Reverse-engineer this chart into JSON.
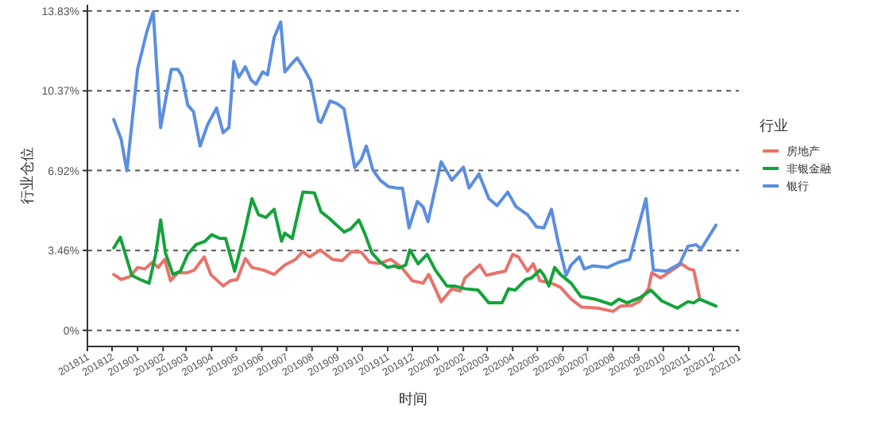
{
  "chart_data": {
    "type": "line",
    "xlabel": "时间",
    "ylabel": "行业仓位",
    "legend_title": "行业",
    "legend": "right",
    "grid": "y",
    "line_style": "solid",
    "xlim": [
      "2018-11-01",
      "2021-01-01"
    ],
    "xticks": [
      {
        "value": "2018-11-01",
        "label": "201811"
      },
      {
        "value": "2018-12-01",
        "label": "201812"
      },
      {
        "value": "2019-01-01",
        "label": "201901"
      },
      {
        "value": "2019-02-01",
        "label": "201902"
      },
      {
        "value": "2019-03-01",
        "label": "201903"
      },
      {
        "value": "2019-04-01",
        "label": "201904"
      },
      {
        "value": "2019-05-01",
        "label": "201905"
      },
      {
        "value": "2019-06-01",
        "label": "201906"
      },
      {
        "value": "2019-07-01",
        "label": "201907"
      },
      {
        "value": "2019-08-01",
        "label": "201908"
      },
      {
        "value": "2019-09-01",
        "label": "201909"
      },
      {
        "value": "2019-10-01",
        "label": "201910"
      },
      {
        "value": "2019-11-01",
        "label": "201911"
      },
      {
        "value": "2019-12-01",
        "label": "201912"
      },
      {
        "value": "2020-01-01",
        "label": "202001"
      },
      {
        "value": "2020-02-01",
        "label": "202002"
      },
      {
        "value": "2020-03-01",
        "label": "202003"
      },
      {
        "value": "2020-04-01",
        "label": "202004"
      },
      {
        "value": "2020-05-01",
        "label": "202005"
      },
      {
        "value": "2020-06-01",
        "label": "202006"
      },
      {
        "value": "2020-07-01",
        "label": "202007"
      },
      {
        "value": "2020-08-01",
        "label": "202008"
      },
      {
        "value": "2020-09-01",
        "label": "202009"
      },
      {
        "value": "2020-10-01",
        "label": "202010"
      },
      {
        "value": "2020-11-01",
        "label": "202011"
      },
      {
        "value": "2020-12-01",
        "label": "202012"
      },
      {
        "value": "2021-01-01",
        "label": "202101"
      }
    ],
    "ylim": [
      -0.7,
      14.1
    ],
    "yticks": [
      {
        "value": 0,
        "label": "0%"
      },
      {
        "value": 3.46,
        "label": "3.46%"
      },
      {
        "value": 6.92,
        "label": "6.92%"
      },
      {
        "value": 10.37,
        "label": "10.37%"
      },
      {
        "value": 13.83,
        "label": "13.83%"
      }
    ],
    "series": [
      {
        "name": "房地产",
        "color": "#e8736b",
        "x": [
          "2018-12-03",
          "2018-12-12",
          "2018-12-23",
          "2019-01-01",
          "2019-01-10",
          "2019-01-19",
          "2019-01-26",
          "2019-02-03",
          "2019-02-10",
          "2019-02-19",
          "2019-03-02",
          "2019-03-11",
          "2019-03-23",
          "2019-03-31",
          "2019-04-15",
          "2019-04-24",
          "2019-05-02",
          "2019-05-12",
          "2019-05-20",
          "2019-06-03",
          "2019-06-16",
          "2019-06-29",
          "2019-07-12",
          "2019-07-21",
          "2019-07-29",
          "2019-08-11",
          "2019-08-26",
          "2019-09-07",
          "2019-09-18",
          "2019-09-30",
          "2019-10-10",
          "2019-10-22",
          "2019-11-05",
          "2019-11-18",
          "2019-12-01",
          "2019-12-14",
          "2019-12-21",
          "2020-01-05",
          "2020-01-18",
          "2020-01-28",
          "2020-02-03",
          "2020-02-21",
          "2020-02-29",
          "2020-03-13",
          "2020-03-23",
          "2020-04-01",
          "2020-04-08",
          "2020-04-19",
          "2020-04-26",
          "2020-05-04",
          "2020-05-18",
          "2020-05-29",
          "2020-06-11",
          "2020-06-24",
          "2020-07-14",
          "2020-08-01",
          "2020-08-10",
          "2020-08-24",
          "2020-09-03",
          "2020-09-13",
          "2020-09-17",
          "2020-09-28",
          "2020-10-12",
          "2020-10-23",
          "2020-11-01",
          "2020-11-07",
          "2020-11-14"
        ],
        "values": [
          2.42,
          2.2,
          2.33,
          2.72,
          2.66,
          2.95,
          2.72,
          3.07,
          2.15,
          2.49,
          2.49,
          2.61,
          3.18,
          2.42,
          1.92,
          2.15,
          2.2,
          3.11,
          2.72,
          2.61,
          2.42,
          2.83,
          3.07,
          3.41,
          3.18,
          3.48,
          3.07,
          3.02,
          3.41,
          3.38,
          2.95,
          2.9,
          3.07,
          2.72,
          2.15,
          2.04,
          2.42,
          1.24,
          1.8,
          1.7,
          2.27,
          2.83,
          2.38,
          2.49,
          2.56,
          3.29,
          3.18,
          2.56,
          2.88,
          2.15,
          2.04,
          1.87,
          1.35,
          1.0,
          0.96,
          0.82,
          1.05,
          1.08,
          1.28,
          1.8,
          2.49,
          2.27,
          2.61,
          2.88,
          2.66,
          2.61,
          1.45
        ]
      },
      {
        "name": "非银金融",
        "color": "#14a33a",
        "x": [
          "2018-12-03",
          "2018-12-11",
          "2018-12-25",
          "2019-01-04",
          "2019-01-15",
          "2019-01-23",
          "2019-01-29",
          "2019-02-04",
          "2019-02-13",
          "2019-02-22",
          "2019-03-03",
          "2019-03-13",
          "2019-03-24",
          "2019-04-01",
          "2019-04-11",
          "2019-04-18",
          "2019-04-29",
          "2019-05-10",
          "2019-05-20",
          "2019-05-28",
          "2019-06-06",
          "2019-06-16",
          "2019-06-25",
          "2019-06-29",
          "2019-07-08",
          "2019-07-21",
          "2019-08-04",
          "2019-08-12",
          "2019-08-22",
          "2019-09-09",
          "2019-09-17",
          "2019-09-27",
          "2019-10-04",
          "2019-10-13",
          "2019-10-23",
          "2019-11-01",
          "2019-11-09",
          "2019-11-15",
          "2019-11-23",
          "2019-11-28",
          "2019-12-08",
          "2019-12-19",
          "2019-12-29",
          "2020-01-12",
          "2020-01-21",
          "2020-02-03",
          "2020-02-19",
          "2020-03-03",
          "2020-03-19",
          "2020-03-27",
          "2020-04-04",
          "2020-04-17",
          "2020-04-24",
          "2020-05-04",
          "2020-05-09",
          "2020-05-15",
          "2020-05-22",
          "2020-05-29",
          "2020-06-11",
          "2020-06-23",
          "2020-07-10",
          "2020-07-30",
          "2020-08-08",
          "2020-08-18",
          "2020-09-03",
          "2020-09-16",
          "2020-09-29",
          "2020-10-18",
          "2020-10-31",
          "2020-11-07",
          "2020-11-14",
          "2020-12-04"
        ],
        "values": [
          3.57,
          4.03,
          2.38,
          2.2,
          2.04,
          3.29,
          4.78,
          3.34,
          2.42,
          2.56,
          3.29,
          3.71,
          3.86,
          4.14,
          3.98,
          3.98,
          2.56,
          4.08,
          5.7,
          5.01,
          4.89,
          5.24,
          3.86,
          4.21,
          3.98,
          5.99,
          5.95,
          5.13,
          4.85,
          4.26,
          4.39,
          4.78,
          4.21,
          3.34,
          2.95,
          2.72,
          2.79,
          2.7,
          2.83,
          3.48,
          2.88,
          3.29,
          2.61,
          1.92,
          1.92,
          1.8,
          1.74,
          1.19,
          1.19,
          1.8,
          1.74,
          2.2,
          2.27,
          2.61,
          2.38,
          1.92,
          2.72,
          2.42,
          2.04,
          1.46,
          1.35,
          1.12,
          1.35,
          1.19,
          1.42,
          1.74,
          1.28,
          0.96,
          1.24,
          1.19,
          1.35,
          1.05
        ]
      },
      {
        "name": "银行",
        "color": "#5b8ee0",
        "x": [
          "2018-12-03",
          "2018-12-12",
          "2018-12-19",
          "2019-01-01",
          "2019-01-12",
          "2019-01-20",
          "2019-01-29",
          "2019-02-05",
          "2019-02-11",
          "2019-02-19",
          "2019-02-24",
          "2019-03-03",
          "2019-03-10",
          "2019-03-18",
          "2019-03-27",
          "2019-04-07",
          "2019-04-15",
          "2019-04-22",
          "2019-04-28",
          "2019-05-04",
          "2019-05-12",
          "2019-05-19",
          "2019-05-25",
          "2019-06-02",
          "2019-06-08",
          "2019-06-16",
          "2019-06-24",
          "2019-06-29",
          "2019-07-07",
          "2019-07-14",
          "2019-07-21",
          "2019-07-30",
          "2019-08-09",
          "2019-08-12",
          "2019-08-23",
          "2019-09-01",
          "2019-09-09",
          "2019-09-22",
          "2019-09-30",
          "2019-10-06",
          "2019-10-14",
          "2019-10-23",
          "2019-11-02",
          "2019-11-13",
          "2019-11-19",
          "2019-11-27",
          "2019-12-07",
          "2019-12-14",
          "2019-12-20",
          "2020-01-05",
          "2020-01-18",
          "2020-02-01",
          "2020-02-08",
          "2020-02-20",
          "2020-03-03",
          "2020-03-13",
          "2020-03-26",
          "2020-04-05",
          "2020-04-19",
          "2020-04-30",
          "2020-05-09",
          "2020-05-18",
          "2020-05-26",
          "2020-06-05",
          "2020-06-11",
          "2020-06-21",
          "2020-06-27",
          "2020-07-07",
          "2020-07-25",
          "2020-08-08",
          "2020-08-21",
          "2020-09-10",
          "2020-09-19",
          "2020-10-05",
          "2020-10-21",
          "2020-10-31",
          "2020-11-10",
          "2020-11-16",
          "2020-12-04"
        ],
        "values": [
          9.13,
          8.28,
          6.91,
          11.3,
          12.9,
          13.8,
          8.78,
          10.16,
          11.3,
          11.3,
          11.0,
          9.75,
          9.47,
          7.98,
          8.9,
          9.63,
          8.56,
          8.78,
          11.65,
          10.96,
          11.41,
          10.84,
          10.66,
          11.19,
          11.07,
          12.68,
          13.36,
          11.19,
          11.53,
          11.8,
          11.41,
          10.84,
          9.06,
          9.01,
          9.93,
          9.81,
          9.59,
          7.05,
          7.41,
          7.98,
          6.95,
          6.5,
          6.22,
          6.16,
          6.16,
          4.44,
          5.58,
          5.35,
          4.71,
          7.3,
          6.5,
          7.07,
          6.16,
          6.77,
          5.7,
          5.4,
          5.99,
          5.35,
          5.01,
          4.48,
          4.44,
          5.24,
          3.86,
          2.38,
          2.83,
          3.18,
          2.66,
          2.79,
          2.72,
          2.95,
          3.07,
          5.7,
          2.61,
          2.56,
          2.88,
          3.64,
          3.71,
          3.52,
          4.55
        ]
      }
    ]
  }
}
